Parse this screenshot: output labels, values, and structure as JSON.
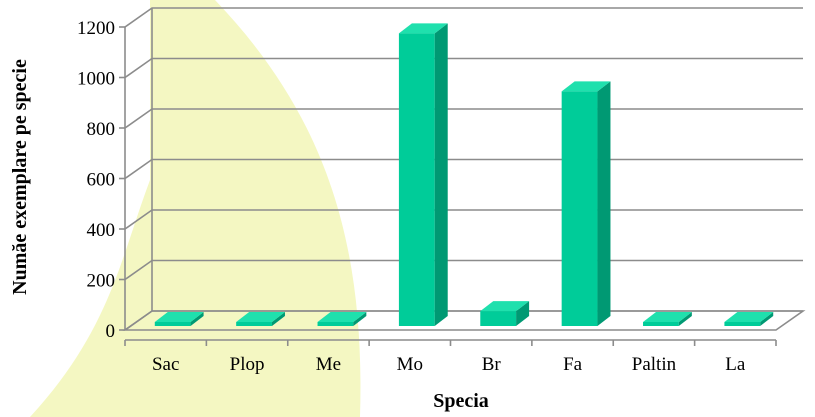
{
  "chart_data": {
    "type": "bar",
    "title": "",
    "xlabel": "Specia",
    "ylabel": "Număe exemplare pe specie",
    "categories": [
      "Sac",
      "Plop",
      "Me",
      "Mo",
      "Br",
      "Fa",
      "Paltin",
      "La"
    ],
    "values": [
      15,
      8,
      3,
      1175,
      75,
      945,
      2,
      10
    ],
    "ylim": [
      0,
      1200
    ],
    "yticks": [
      0,
      200,
      400,
      600,
      800,
      1000,
      1200
    ],
    "ytick_labels": [
      "0",
      "200",
      "400",
      "600",
      "800",
      "1000",
      "1200"
    ],
    "grid": true,
    "legend": "none",
    "style": "3d-column",
    "colors": {
      "bar_front": "#00cc99",
      "bar_side": "#009973",
      "bar_top": "#1fe0ad",
      "gridline": "#8c8c8c",
      "watermark": "#f4f7c2"
    }
  }
}
